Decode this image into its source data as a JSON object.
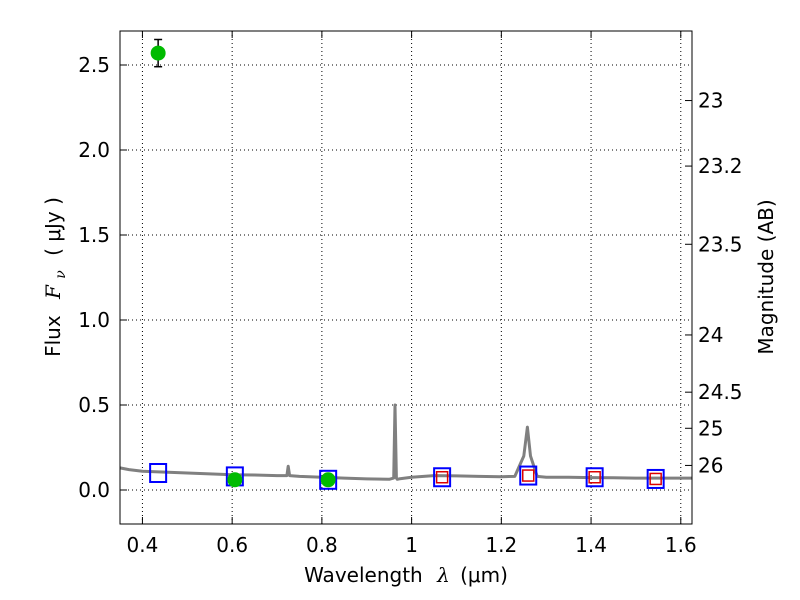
{
  "chart_data": {
    "type": "scatter",
    "xlabel_prefix": "Wavelength",
    "xlabel_symbol": "λ",
    "xlabel_unit": "(μm)",
    "ylabel_prefix": "Flux",
    "ylabel_symbol": "F",
    "ylabel_sub": "ν",
    "ylabel_unit": "( μJy )",
    "y2label": "Magnitude (AB)",
    "xlim": [
      0.35,
      1.625
    ],
    "ylim": [
      -0.2,
      2.7
    ],
    "x_ticks": [
      {
        "value": 0.4,
        "label": "0.4"
      },
      {
        "value": 0.6,
        "label": "0.6"
      },
      {
        "value": 0.8,
        "label": "0.8"
      },
      {
        "value": 1.0,
        "label": "1"
      },
      {
        "value": 1.2,
        "label": "1.2"
      },
      {
        "value": 1.4,
        "label": "1.4"
      },
      {
        "value": 1.6,
        "label": "1.6"
      }
    ],
    "y_ticks": [
      {
        "value": 0.0,
        "label": "0.0"
      },
      {
        "value": 0.5,
        "label": "0.5"
      },
      {
        "value": 1.0,
        "label": "1.0"
      },
      {
        "value": 1.5,
        "label": "1.5"
      },
      {
        "value": 2.0,
        "label": "2.0"
      },
      {
        "value": 2.5,
        "label": "2.5"
      }
    ],
    "mag_ticks": [
      {
        "value": 23,
        "label": "23"
      },
      {
        "value": 23.2,
        "label": "23.2"
      },
      {
        "value": 23.5,
        "label": "23.5"
      },
      {
        "value": 24,
        "label": "24"
      },
      {
        "value": 24.5,
        "label": "24.5"
      },
      {
        "value": 25,
        "label": "25"
      },
      {
        "value": 26,
        "label": "26"
      }
    ],
    "grid": true,
    "grid_style": "dotted",
    "colors": {
      "spectrum": "#808080",
      "observed": "#00bb00",
      "model_box": "#0000ff",
      "model_inner": "#dd0000",
      "errorbar": "#000000"
    },
    "spectrum": {
      "x": [
        0.35,
        0.37,
        0.4,
        0.45,
        0.5,
        0.55,
        0.6,
        0.65,
        0.7,
        0.722,
        0.725,
        0.728,
        0.75,
        0.8,
        0.85,
        0.9,
        0.95,
        0.96,
        0.963,
        0.966,
        0.968,
        0.972,
        1.0,
        1.05,
        1.1,
        1.15,
        1.2,
        1.23,
        1.25,
        1.258,
        1.265,
        1.28,
        1.3,
        1.35,
        1.4,
        1.45,
        1.5,
        1.55,
        1.6,
        1.625
      ],
      "y": [
        0.13,
        0.12,
        0.11,
        0.105,
        0.1,
        0.095,
        0.09,
        0.088,
        0.085,
        0.085,
        0.14,
        0.085,
        0.08,
        0.075,
        0.07,
        0.065,
        0.063,
        0.07,
        0.5,
        0.07,
        0.063,
        0.065,
        0.075,
        0.085,
        0.083,
        0.08,
        0.078,
        0.08,
        0.2,
        0.37,
        0.2,
        0.08,
        0.075,
        0.075,
        0.073,
        0.072,
        0.07,
        0.07,
        0.07,
        0.07
      ]
    },
    "observed": [
      {
        "x": 0.435,
        "y": 2.57,
        "yerr": 0.08
      },
      {
        "x": 0.606,
        "y": 0.06,
        "yerr": 0.02
      },
      {
        "x": 0.814,
        "y": 0.06,
        "yerr": 0.025
      }
    ],
    "model_boxes": [
      {
        "x": 0.435,
        "y": 0.1
      },
      {
        "x": 0.606,
        "y": 0.08
      },
      {
        "x": 0.814,
        "y": 0.06
      },
      {
        "x": 1.068,
        "y": 0.075
      },
      {
        "x": 1.26,
        "y": 0.085
      },
      {
        "x": 1.408,
        "y": 0.075
      },
      {
        "x": 1.544,
        "y": 0.065
      }
    ],
    "model_inner": [
      {
        "x": 1.068,
        "y": 0.075
      },
      {
        "x": 1.26,
        "y": 0.085
      },
      {
        "x": 1.408,
        "y": 0.075
      },
      {
        "x": 1.544,
        "y": 0.065
      }
    ]
  }
}
